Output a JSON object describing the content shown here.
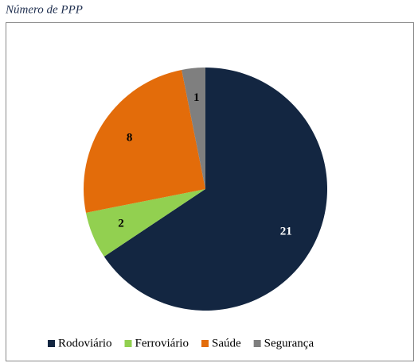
{
  "chart_data": {
    "type": "pie",
    "title": "Número de PPP",
    "categories": [
      "Rodoviário",
      "Ferroviário",
      "Saúde",
      "Segurança"
    ],
    "values": [
      21,
      2,
      8,
      1
    ],
    "colors": [
      "#132641",
      "#92d050",
      "#e36c0a",
      "#7f7f7f"
    ],
    "legend": "bottom"
  }
}
